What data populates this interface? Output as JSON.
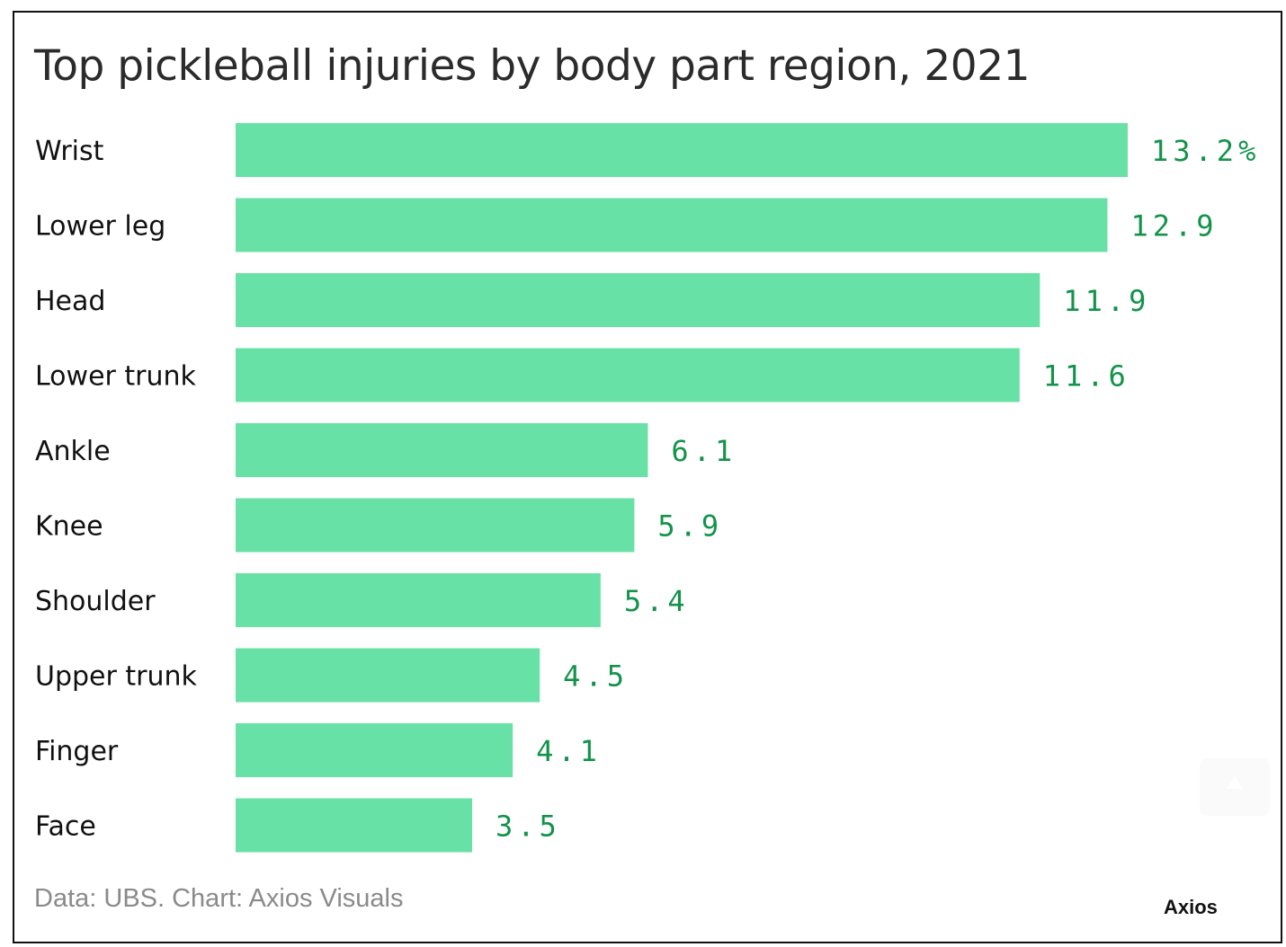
{
  "header": {
    "title": "Top pickleball injuries by body part region, 2021"
  },
  "footer": {
    "source": "Data: UBS. Chart: Axios Visuals",
    "brand": "Axios"
  },
  "colors": {
    "bar": "#68e1a6",
    "value_text": "#13934a",
    "label_text": "#111111"
  },
  "chart_data": {
    "type": "bar",
    "orientation": "horizontal",
    "title": "Top pickleball injuries by body part region, 2021",
    "xlabel": "",
    "ylabel": "",
    "unit": "%",
    "xlim": [
      0,
      13.2
    ],
    "grid": false,
    "categories": [
      "Wrist",
      "Lower leg",
      "Head",
      "Lower trunk",
      "Ankle",
      "Knee",
      "Shoulder",
      "Upper trunk",
      "Finger",
      "Face"
    ],
    "values": [
      13.2,
      12.9,
      11.9,
      11.6,
      6.1,
      5.9,
      5.4,
      4.5,
      4.1,
      3.5
    ],
    "value_labels": [
      "13.2%",
      "12.9",
      "11.9",
      "11.6",
      "6.1",
      "5.9",
      "5.4",
      "4.5",
      "4.1",
      "3.5"
    ]
  }
}
